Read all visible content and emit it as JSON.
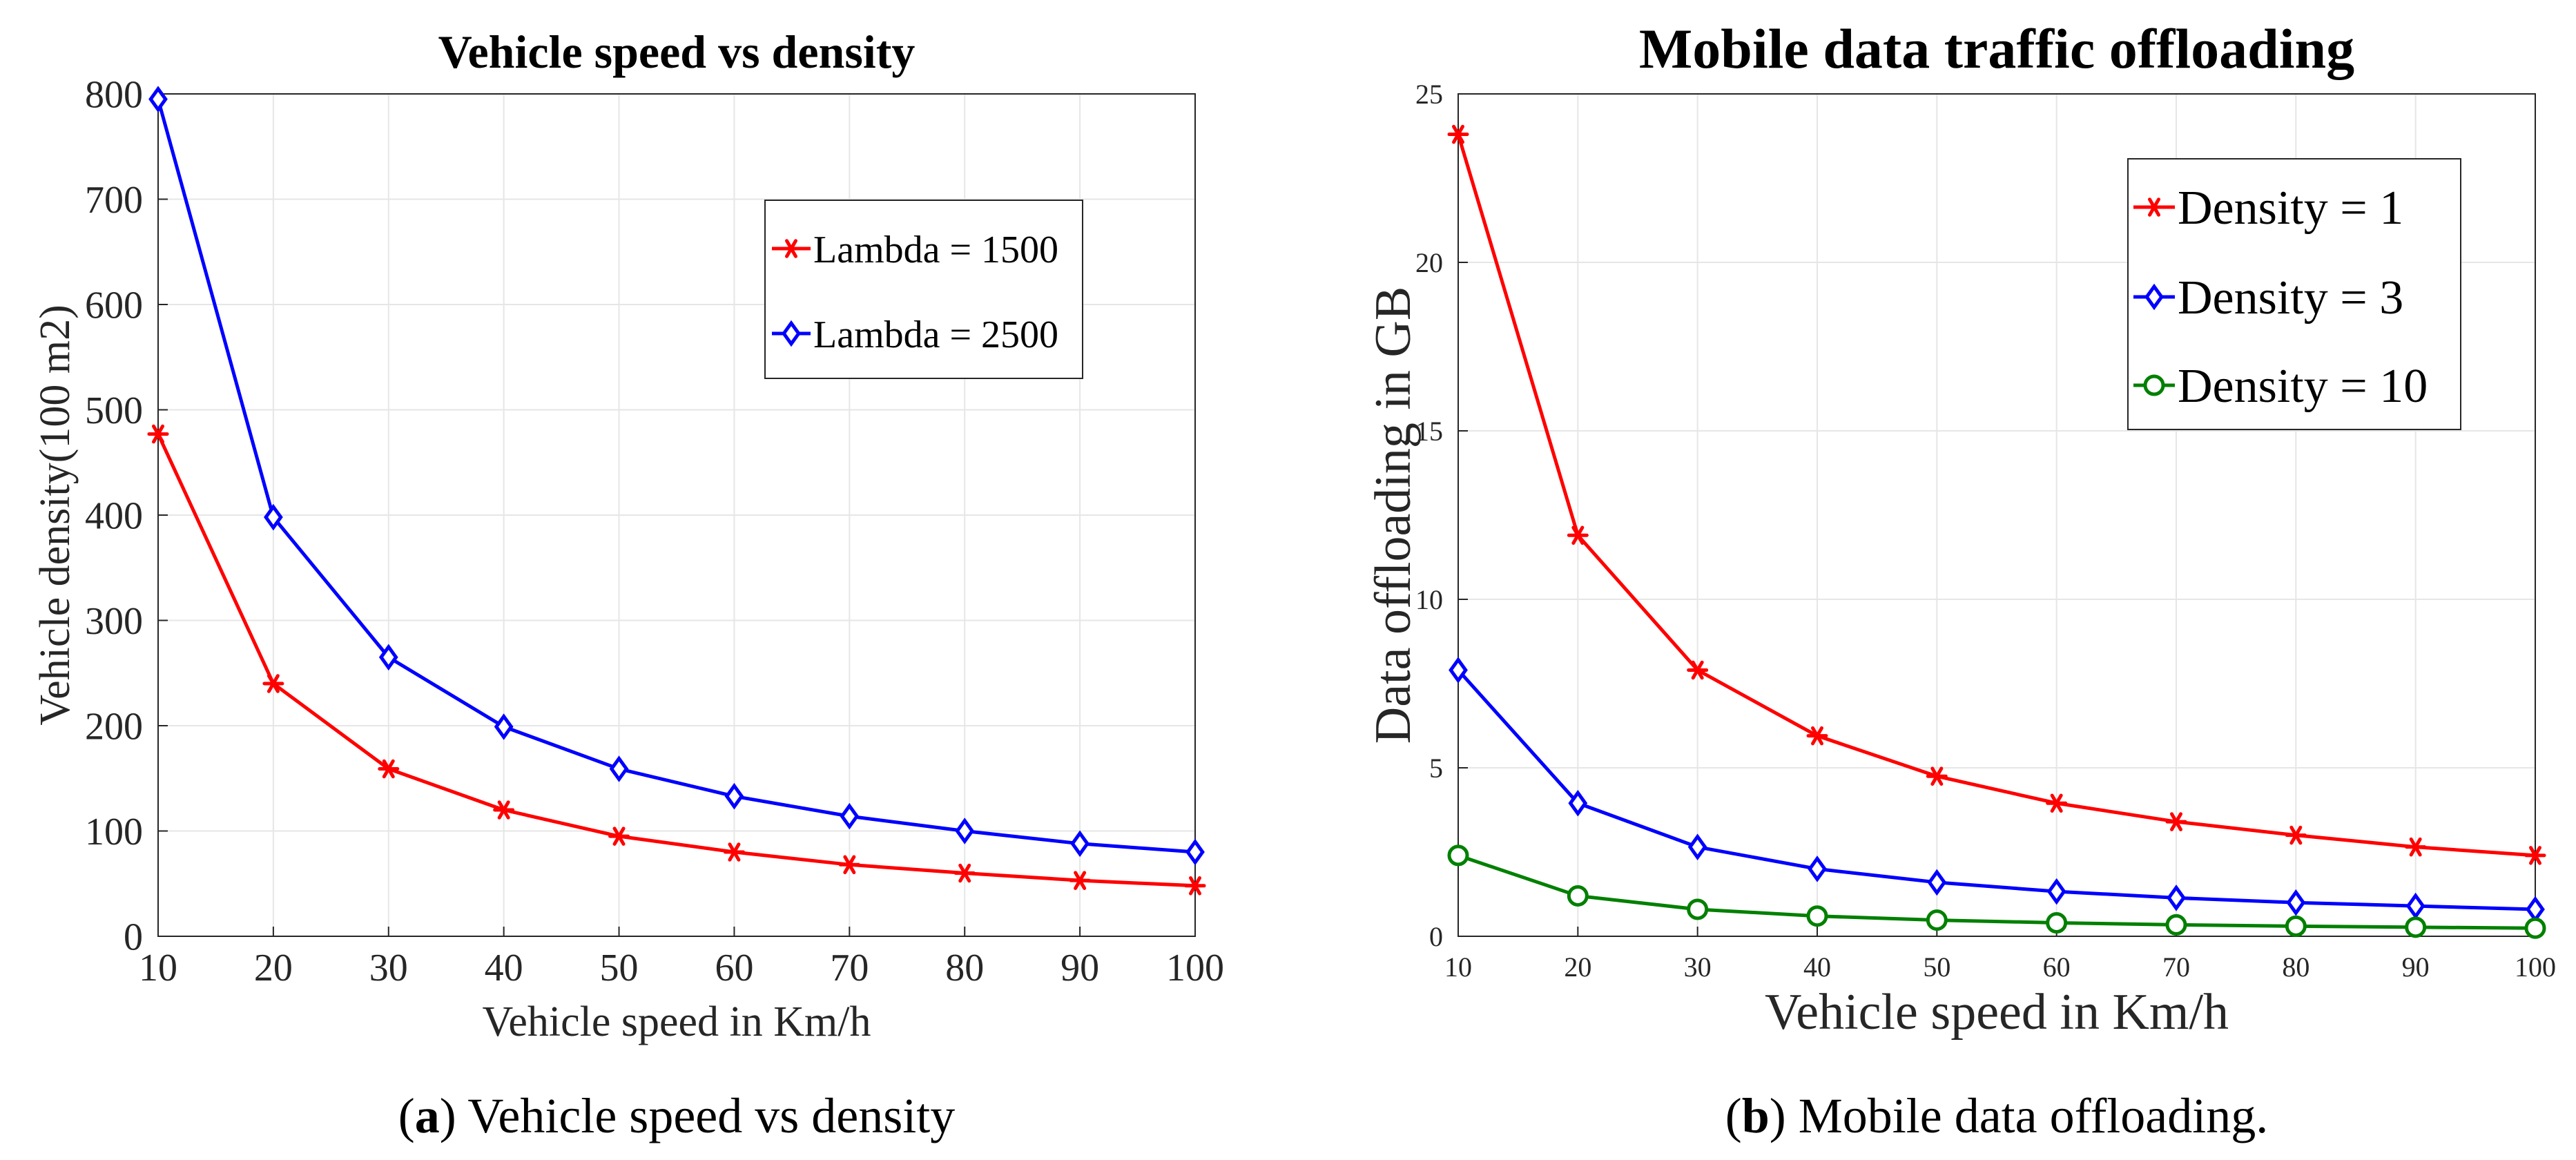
{
  "chart_data": [
    {
      "type": "line",
      "title": "Vehicle speed vs density",
      "xlabel": "Vehicle speed in Km/h",
      "ylabel": "Vehicle density(100 m2)",
      "caption_letter": "a",
      "caption_text": "Vehicle speed vs density",
      "x": [
        10,
        20,
        30,
        40,
        50,
        60,
        70,
        80,
        90,
        100
      ],
      "xlim": [
        10,
        100
      ],
      "ylim": [
        0,
        800
      ],
      "xticks": [
        10,
        20,
        30,
        40,
        50,
        60,
        70,
        80,
        90,
        100
      ],
      "yticks": [
        0,
        100,
        200,
        300,
        400,
        500,
        600,
        700,
        800
      ],
      "grid": true,
      "legend_position": "upper-right",
      "series": [
        {
          "name": "Lambda = 1500",
          "color": "#ff0000",
          "marker": "star",
          "values": [
            477,
            240,
            159,
            120,
            95,
            80,
            68,
            60,
            53,
            48
          ]
        },
        {
          "name": "Lambda = 2500",
          "color": "#0000ff",
          "marker": "diamond",
          "values": [
            795,
            398,
            265,
            199,
            159,
            133,
            114,
            100,
            88,
            80
          ]
        }
      ]
    },
    {
      "type": "line",
      "title": "Mobile data traffic offloading",
      "xlabel": "Vehicle speed in Km/h",
      "ylabel": "Data offloading in GB",
      "caption_letter": "b",
      "caption_text": "Mobile data offloading.",
      "x": [
        10,
        20,
        30,
        40,
        50,
        60,
        70,
        80,
        90,
        100
      ],
      "xlim": [
        10,
        100
      ],
      "ylim": [
        0,
        25
      ],
      "xticks": [
        10,
        20,
        30,
        40,
        50,
        60,
        70,
        80,
        90,
        100
      ],
      "yticks": [
        0,
        5,
        10,
        15,
        20,
        25
      ],
      "grid": true,
      "legend_position": "upper-right",
      "series": [
        {
          "name": "Density = 1",
          "color": "#ff0000",
          "marker": "star",
          "values": [
            23.8,
            11.9,
            7.9,
            5.95,
            4.75,
            3.95,
            3.4,
            3.0,
            2.65,
            2.4
          ]
        },
        {
          "name": "Density = 3",
          "color": "#0000ff",
          "marker": "diamond",
          "values": [
            7.9,
            3.95,
            2.65,
            2.0,
            1.6,
            1.33,
            1.14,
            1.0,
            0.9,
            0.8
          ]
        },
        {
          "name": "Density = 10",
          "color": "#008000",
          "marker": "circle",
          "values": [
            2.4,
            1.2,
            0.8,
            0.6,
            0.48,
            0.4,
            0.34,
            0.3,
            0.27,
            0.24
          ]
        }
      ]
    }
  ]
}
